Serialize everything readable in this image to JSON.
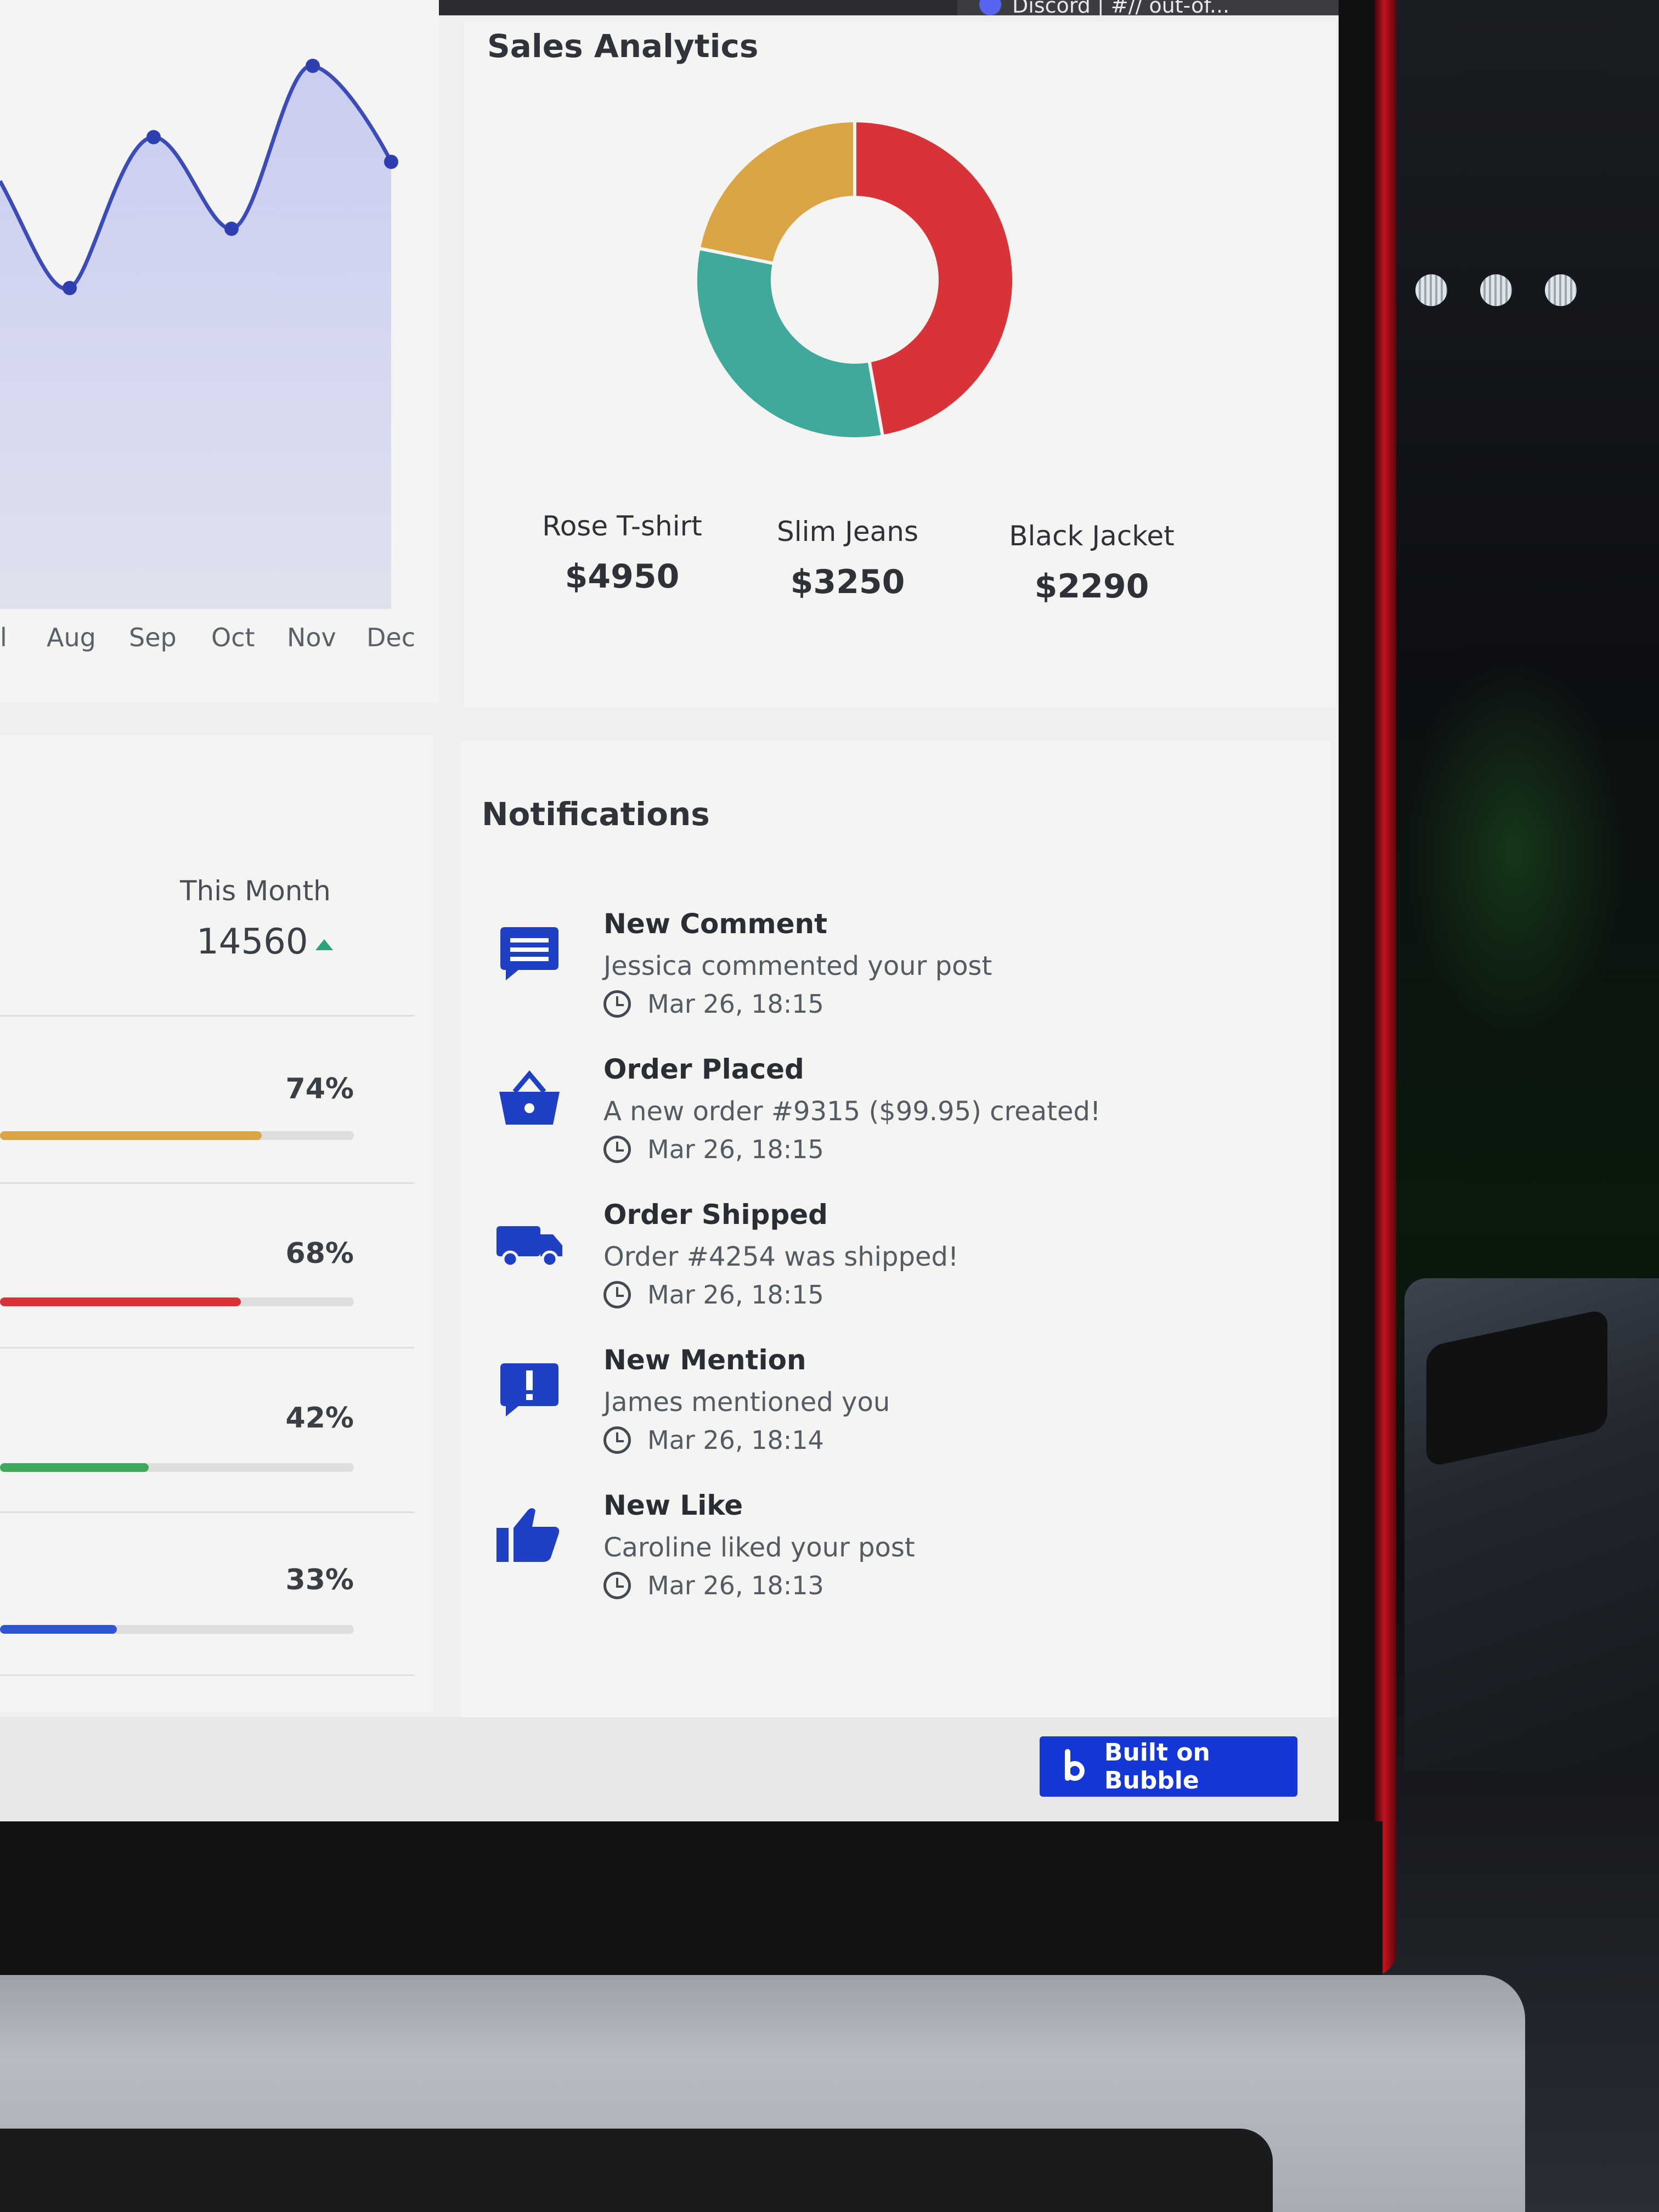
{
  "browser": {
    "tab_label": "Discord | #// out-of..."
  },
  "line_chart": {
    "months": [
      "l",
      "Aug",
      "Sep",
      "Oct",
      "Nov",
      "Dec"
    ],
    "line_color": "#3b4bb8"
  },
  "chart_data": {
    "type": "pie",
    "title": "Sales Analytics",
    "categories": [
      "Rose T-shirt",
      "Slim Jeans",
      "Black Jacket"
    ],
    "values": [
      4950,
      3250,
      2290
    ],
    "colors": [
      "#d9333a",
      "#3fa99a",
      "#dba445"
    ],
    "value_labels": [
      "$4950",
      "$3250",
      "$2290"
    ]
  },
  "sales": {
    "title": "Sales Analytics",
    "items": [
      {
        "name": "Rose T-shirt",
        "value": "$4950"
      },
      {
        "name": "Slim Jeans",
        "value": "$3250"
      },
      {
        "name": "Black Jacket",
        "value": "$2290"
      }
    ]
  },
  "stats": {
    "period_label": "This Month",
    "period_value": "14560",
    "rows": [
      {
        "percent_label": "74%",
        "fraction": 0.74,
        "color": "#dba445"
      },
      {
        "percent_label": "68%",
        "fraction": 0.68,
        "color": "#d9333a"
      },
      {
        "percent_label": "42%",
        "fraction": 0.42,
        "color": "#3fa85c"
      },
      {
        "percent_label": "33%",
        "fraction": 0.33,
        "color": "#2f55d4"
      }
    ]
  },
  "notifications": {
    "title": "Notifications",
    "items": [
      {
        "title": "New Comment",
        "text": "Jessica commented your post",
        "time": "Mar 26, 18:15",
        "icon": "comment-icon"
      },
      {
        "title": "Order Placed",
        "text": "A new order #9315 ($99.95) created!",
        "time": "Mar 26, 18:15",
        "icon": "basket-icon"
      },
      {
        "title": "Order Shipped",
        "text": "Order #4254 was shipped!",
        "time": "Mar 26, 18:15",
        "icon": "truck-icon"
      },
      {
        "title": "New Mention",
        "text": "James mentioned you",
        "time": "Mar 26, 18:14",
        "icon": "mention-icon"
      },
      {
        "title": "New Like",
        "text": "Caroline liked your post",
        "time": "Mar 26, 18:13",
        "icon": "thumbs-up-icon"
      }
    ]
  },
  "badge": {
    "label": "Built on Bubble"
  },
  "colors": {
    "accent": "#1f3fc4",
    "bubble_blue": "#1436d6"
  }
}
